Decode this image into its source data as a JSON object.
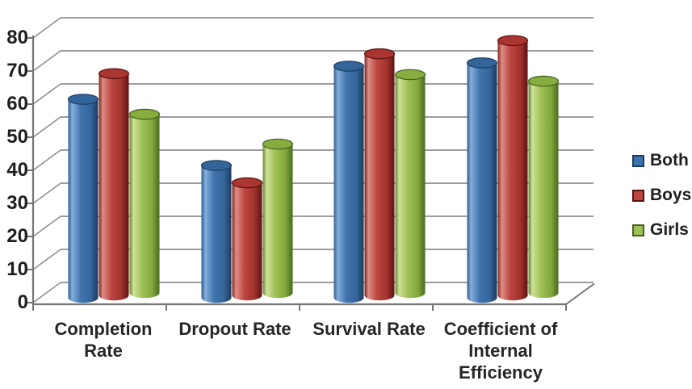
{
  "chart_data": {
    "type": "bar",
    "style": "3d-cylinder",
    "title": "",
    "xlabel": "",
    "ylabel": "",
    "categories": [
      "Completion Rate",
      "Dropout Rate",
      "Survival Rate",
      "Coefficient of Internal Efficiency"
    ],
    "series": [
      {
        "name": "Both",
        "values": [
          60,
          40,
          70,
          71
        ],
        "color": "#3e74ae",
        "gradient": [
          [
            "0%",
            "#2e5a8a"
          ],
          [
            "13%",
            "#84aedd"
          ],
          [
            "42%",
            "#4174ad"
          ],
          [
            "75%",
            "#35679d"
          ],
          [
            "100%",
            "#1d3a5c"
          ]
        ],
        "top_fill": "#336599",
        "top_stroke": "#1b3c60"
      },
      {
        "name": "Boys",
        "values": [
          67,
          34,
          73,
          77
        ],
        "color": "#bc4640",
        "gradient": [
          [
            "0%",
            "#7e241f"
          ],
          [
            "13%",
            "#de8d85"
          ],
          [
            "42%",
            "#bc4640"
          ],
          [
            "75%",
            "#a2322d"
          ],
          [
            "100%",
            "#5c1412"
          ]
        ],
        "top_fill": "#ab3530",
        "top_stroke": "#571210"
      },
      {
        "name": "Girls",
        "values": [
          54,
          45,
          66,
          64
        ],
        "color": "#9fc055",
        "gradient": [
          [
            "0%",
            "#64842f"
          ],
          [
            "13%",
            "#cfe199"
          ],
          [
            "42%",
            "#9fc055"
          ],
          [
            "75%",
            "#83a93d"
          ],
          [
            "100%",
            "#4a6a1f"
          ]
        ],
        "top_fill": "#87ad3e",
        "top_stroke": "#465f20"
      }
    ],
    "ylim": [
      0,
      80
    ],
    "ytick_step": 10,
    "ytick_labels": [
      "80",
      "70",
      "60",
      "50",
      "40",
      "30",
      "20",
      "10",
      "0"
    ],
    "grid": true,
    "legend_position": "right",
    "colors": {
      "background": "#ffffff",
      "gridline": "#8f8f8f",
      "axis": "#757575",
      "text": "#1f1f1f"
    }
  }
}
